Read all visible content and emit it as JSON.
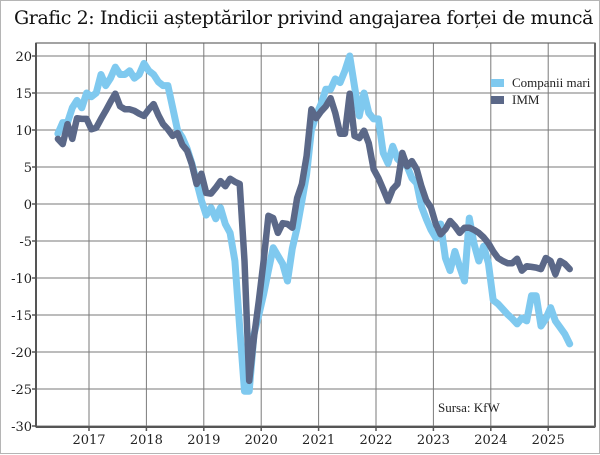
{
  "chart_data": {
    "type": "line",
    "title": "Grafic 2: Indicii așteptărilor privind angajarea forței de muncă",
    "source_note": "Sursa: KfW",
    "xlabel": "",
    "ylabel": "",
    "ylim": [
      -30,
      20
    ],
    "yticks": [
      "20",
      "15",
      "10",
      "5",
      "0",
      "-5",
      "-10",
      "-15",
      "-20",
      "-25",
      "-30"
    ],
    "xticks": [
      "2017",
      "2018",
      "2019",
      "2020",
      "2021",
      "2022",
      "2023",
      "2024",
      "2025"
    ],
    "grid": true,
    "legend_position": "top-right",
    "x": [
      "2016-06",
      "2016-07",
      "2016-08",
      "2016-09",
      "2016-10",
      "2016-11",
      "2016-12",
      "2017-01",
      "2017-02",
      "2017-03",
      "2017-04",
      "2017-05",
      "2017-06",
      "2017-07",
      "2017-08",
      "2017-09",
      "2017-10",
      "2017-11",
      "2017-12",
      "2018-01",
      "2018-02",
      "2018-03",
      "2018-04",
      "2018-05",
      "2018-06",
      "2018-07",
      "2018-08",
      "2018-09",
      "2018-10",
      "2018-11",
      "2018-12",
      "2019-01",
      "2019-02",
      "2019-03",
      "2019-04",
      "2019-05",
      "2019-06",
      "2019-07",
      "2019-08",
      "2019-09",
      "2019-10",
      "2019-11",
      "2019-12",
      "2020-01",
      "2020-02",
      "2020-03",
      "2020-04",
      "2020-05",
      "2020-06",
      "2020-07",
      "2020-08",
      "2020-09",
      "2020-10",
      "2020-11",
      "2020-12",
      "2021-01",
      "2021-02",
      "2021-03",
      "2021-04",
      "2021-05",
      "2021-06",
      "2021-07",
      "2021-08",
      "2021-09",
      "2021-10",
      "2021-11",
      "2021-12",
      "2022-01",
      "2022-02",
      "2022-03",
      "2022-04",
      "2022-05",
      "2022-06",
      "2022-07",
      "2022-08",
      "2022-09",
      "2022-10",
      "2022-11",
      "2022-12",
      "2023-01",
      "2023-02",
      "2023-03",
      "2023-04",
      "2023-05",
      "2023-06",
      "2023-07",
      "2023-08",
      "2023-09",
      "2023-10",
      "2023-11",
      "2023-12",
      "2024-01",
      "2024-02",
      "2024-03",
      "2024-04",
      "2024-05",
      "2024-06",
      "2024-07",
      "2024-08",
      "2024-09",
      "2024-10",
      "2024-11",
      "2024-12",
      "2025-01",
      "2025-02",
      "2025-03",
      "2025-04",
      "2025-05"
    ],
    "series": [
      {
        "name": "Companii mari",
        "color": "#7fc9ef",
        "values": [
          9.5,
          11,
          11,
          13,
          14,
          13,
          15,
          14.5,
          15,
          17.5,
          16,
          17,
          18.5,
          17.5,
          17.5,
          18,
          17,
          17.5,
          19,
          18,
          17.5,
          16.5,
          16,
          16,
          13,
          10,
          9,
          7.5,
          5.5,
          3,
          0.5,
          -1.5,
          -0.5,
          -2,
          -0.5,
          -2.7,
          -3.9,
          -7.7,
          -16.7,
          -25.3,
          -25.3,
          -17.6,
          -15,
          -12.2,
          -9,
          -5.9,
          -7,
          -8.1,
          -10.4,
          -6,
          -3.2,
          0.4,
          4,
          10,
          12,
          13.5,
          15.5,
          15.5,
          16.9,
          16.4,
          18,
          20,
          15.9,
          11.9,
          15,
          12.3,
          11.5,
          11.5,
          6.9,
          5.5,
          7.8,
          6.1,
          5.5,
          5.1,
          3.5,
          2.8,
          -0.3,
          -2,
          -3.5,
          -4.6,
          -2.7,
          -7.3,
          -9,
          -6.4,
          -8.5,
          -10.4,
          -1.9,
          -5.4,
          -7.7,
          -5.7,
          -8,
          -13,
          -13.5,
          -14.2,
          -14.9,
          -15.5,
          -16.2,
          -15.4,
          -15.8,
          -12.4,
          -12.4,
          -16.5,
          -15.5,
          -14,
          -15.8,
          -16.7,
          -17.6,
          -18.9
        ]
      },
      {
        "name": "IMM",
        "color": "#5b6888",
        "values": [
          8.8,
          8.1,
          10.8,
          8.8,
          11.6,
          11.5,
          11.5,
          10.1,
          10.3,
          11.5,
          12.6,
          13.8,
          14.9,
          13.2,
          12.8,
          12.8,
          12.6,
          12.2,
          11.9,
          12.8,
          13.5,
          12,
          10.8,
          10.1,
          9.2,
          9.6,
          8,
          7.2,
          5.4,
          2.7,
          4.1,
          1.5,
          1.4,
          2.2,
          3.1,
          2.4,
          3.4,
          3,
          2.7,
          -7.7,
          -23.9,
          -18,
          -13.1,
          -7.7,
          -1.6,
          -1.9,
          -3.9,
          -2.6,
          -2.7,
          -3.2,
          0.8,
          2.7,
          6.5,
          12.8,
          11.6,
          12.5,
          13.2,
          14.3,
          12.3,
          9.5,
          9.5,
          14.9,
          9.2,
          8.9,
          9.9,
          8.2,
          4.7,
          3.5,
          2,
          0.4,
          2,
          2.7,
          6.9,
          5.1,
          5.8,
          4.7,
          2.4,
          0.5,
          -0.5,
          -2.7,
          -4.1,
          -3.4,
          -2.3,
          -3,
          -3.9,
          -3.2,
          -3.2,
          -3.5,
          -3.9,
          -4.5,
          -5.3,
          -6.4,
          -7.3,
          -7.7,
          -8,
          -8,
          -7.4,
          -9,
          -8.4,
          -8.5,
          -8.6,
          -8.8,
          -7.3,
          -7.7,
          -9.5,
          -7.7,
          -8.1,
          -8.8
        ]
      }
    ]
  }
}
